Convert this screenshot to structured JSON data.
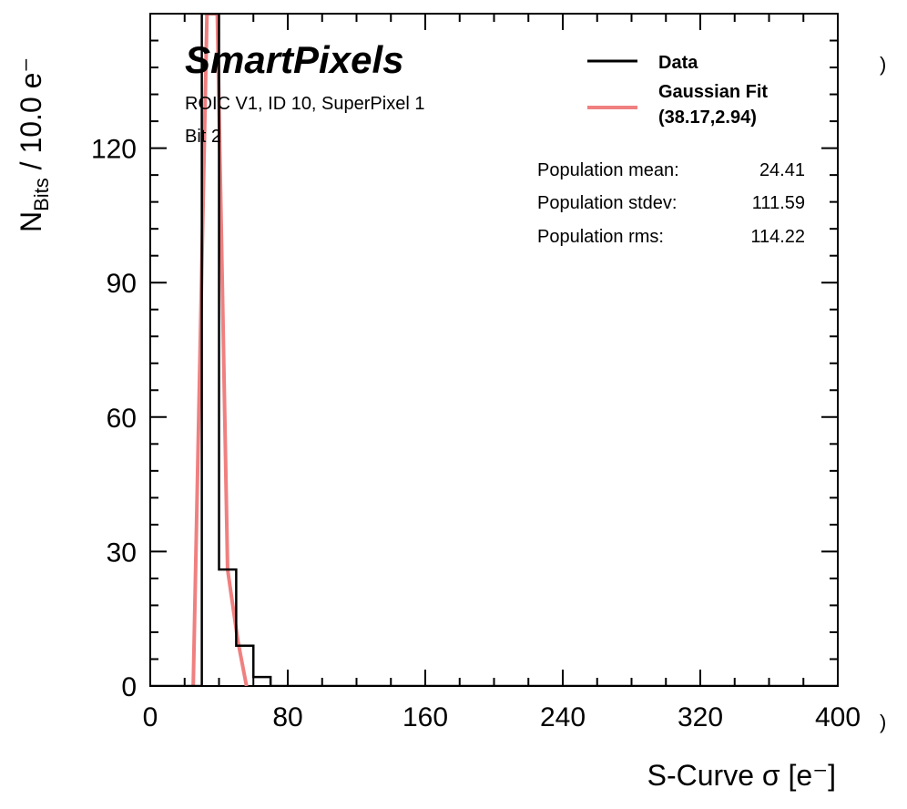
{
  "chart_data": {
    "type": "histogram",
    "title": "",
    "xlabel": "S-Curve σ [e⁻]",
    "ylabel_main": "N",
    "ylabel_sub": "Bits",
    "ylabel_unit": " / 10.0 e⁻",
    "xlim": [
      0,
      400
    ],
    "ylim": [
      0,
      150
    ],
    "xticks": [
      0,
      80,
      160,
      240,
      320,
      400
    ],
    "yticks": [
      0,
      30,
      60,
      90,
      120
    ],
    "bin_width": 10,
    "bins": [
      {
        "x0": 0,
        "x1": 30,
        "count": 0
      },
      {
        "x0": 30,
        "x1": 40,
        "count": 150
      },
      {
        "x0": 40,
        "x1": 50,
        "count": 26
      },
      {
        "x0": 50,
        "x1": 60,
        "count": 9
      },
      {
        "x0": 60,
        "x1": 70,
        "count": 2
      },
      {
        "x0": 70,
        "x1": 400,
        "count": 0
      }
    ],
    "fit": {
      "name": "Gaussian Fit",
      "mean": 38.17,
      "sigma": 2.94,
      "points": [
        [
          25,
          0
        ],
        [
          33,
          150
        ],
        [
          39,
          150
        ],
        [
          45,
          26
        ],
        [
          51,
          10
        ],
        [
          56,
          0
        ]
      ]
    },
    "series_colors": {
      "data": "#000000",
      "fit": "#f08080"
    }
  },
  "annotations": {
    "brand": "SmartPixels",
    "line1": "ROIC V1, ID 10, SuperPixel 1",
    "line2": "Bit 2"
  },
  "legend": {
    "data_label": "Data",
    "fit_label": "Gaussian Fit",
    "fit_params": "(38.17,2.94)"
  },
  "stats": {
    "mean_label": "Population mean:",
    "mean_value": "24.41",
    "stdev_label": "Population stdev:",
    "stdev_value": "111.59",
    "rms_label": "Population rms:",
    "rms_value": "114.22"
  },
  "edge_glyphs": {
    "right_top": ")",
    "right_bottom": ")"
  }
}
